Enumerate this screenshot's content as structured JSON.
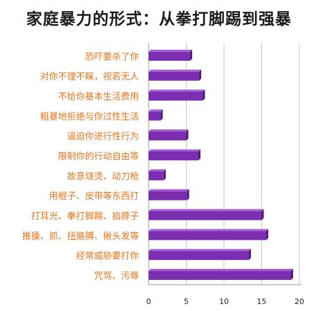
{
  "chart_data": {
    "type": "bar",
    "orientation": "horizontal",
    "title": "家庭暴力的形式：从拳打脚踢到强暴",
    "xlabel": "",
    "ylabel": "",
    "xlim": [
      0,
      20
    ],
    "xticks": [
      0,
      5,
      10,
      15,
      20
    ],
    "grid": true,
    "categories": [
      "恐吓要杀了你",
      "对你不理不睬，视若无人",
      "不给你基本生活费用",
      "粗暴地拒绝与你过性生活",
      "逼迫你进行性行为",
      "限制你的行动自由等",
      "故意烧烫、动刀枪",
      "用棍子、皮带等东西打",
      "打耳光、拳打脚踢、掐脖子",
      "推搡、抓、扭胳膊、揪头发等",
      "经常威胁要打你",
      "咒骂、污辱"
    ],
    "values": [
      5.5,
      6.7,
      7.2,
      1.6,
      5.0,
      6.6,
      2.0,
      5.1,
      15.0,
      15.6,
      13.3,
      18.9
    ],
    "colors": {
      "bar_front": "#7b2fb0",
      "bar_top": "#a85fd6",
      "bar_side": "#4e1b75",
      "category_text": "#e8741a",
      "grid": "#c8c8c8"
    }
  }
}
